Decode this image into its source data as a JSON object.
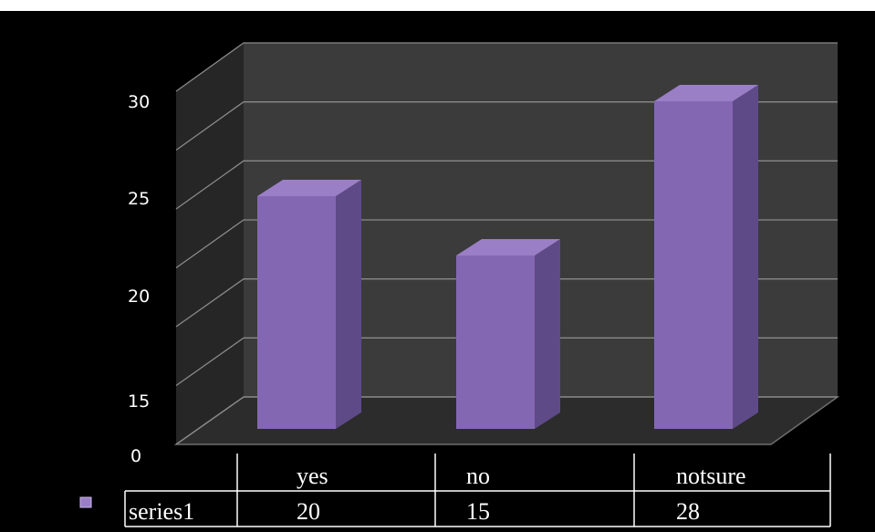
{
  "chart_data": {
    "type": "bar",
    "categories": [
      "yes",
      "no",
      "notsure"
    ],
    "series": [
      {
        "name": "series1",
        "values": [
          20,
          15,
          28
        ]
      }
    ],
    "y_tick_labels": [
      "30",
      "25",
      "20",
      "15",
      "0"
    ],
    "grid": true,
    "three_d": true,
    "data_table": {
      "header": [
        "yes",
        "no",
        "notsure"
      ],
      "rows": [
        {
          "label": "series1",
          "values": [
            "20",
            "15",
            "28"
          ]
        }
      ]
    },
    "colors": {
      "background": "#000000",
      "bar_front": "#8467b3",
      "bar_side": "#5f4a88",
      "bar_top": "#9a7fc6",
      "wall": "#3b3b3b",
      "floor": "#2c2c2c",
      "gridline": "#8a8a8a",
      "text": "#ffffff"
    }
  }
}
